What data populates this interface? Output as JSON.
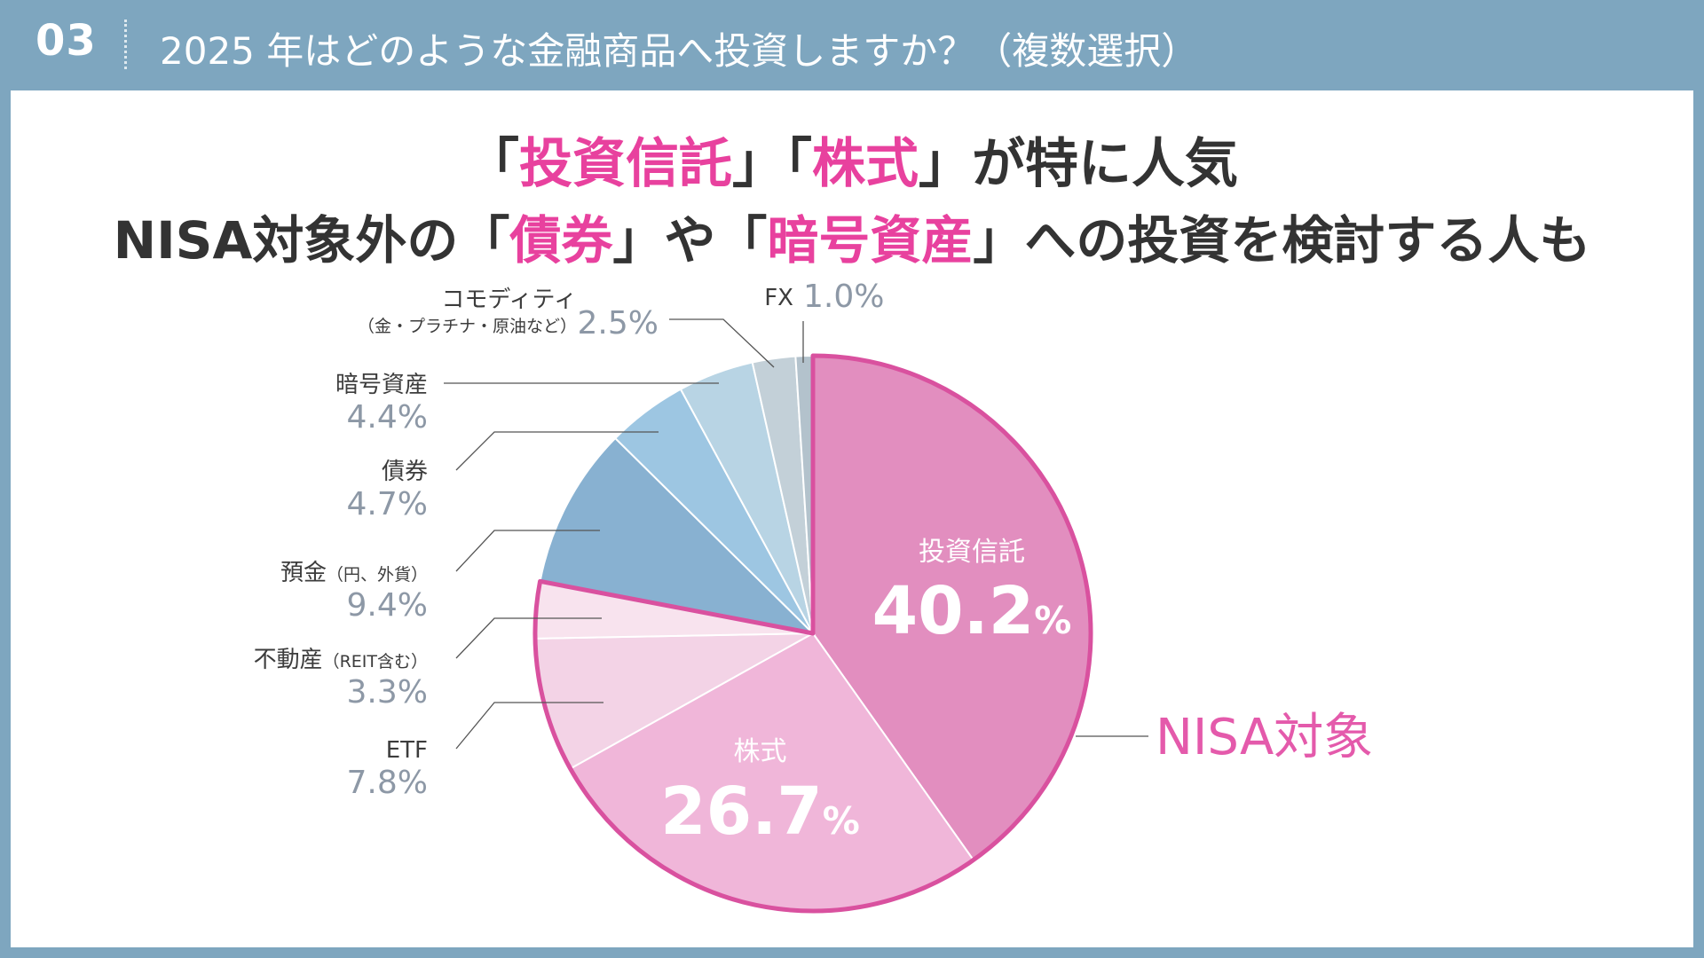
{
  "header": {
    "number": "03",
    "title": "2025 年はどのような金融商品へ投資しますか？（複数選択）"
  },
  "headline": {
    "line1": [
      {
        "text": "「",
        "hl": false
      },
      {
        "text": "投資信託",
        "hl": true
      },
      {
        "text": "」「",
        "hl": false
      },
      {
        "text": "株式",
        "hl": true
      },
      {
        "text": "」が特に人気",
        "hl": false
      }
    ],
    "line2": [
      {
        "text": "NISA対象外の「",
        "hl": false
      },
      {
        "text": "債券",
        "hl": true
      },
      {
        "text": "」や「",
        "hl": false
      },
      {
        "text": "暗号資産",
        "hl": true
      },
      {
        "text": "」への投資を検討する人も",
        "hl": false
      }
    ]
  },
  "colors": {
    "header_bg": "#7ea6bf",
    "highlight": "#e8419e",
    "nisa_outline": "#d9519f",
    "nisa_label": "#e45aab"
  },
  "chart_data": {
    "type": "pie",
    "unit": "%",
    "slices": [
      {
        "name": "投資信託",
        "value": 40.2,
        "label": "40.2",
        "color": "#e28ebf",
        "nisa": true
      },
      {
        "name": "株式",
        "value": 26.7,
        "label": "26.7",
        "color": "#f0b6d9",
        "nisa": true
      },
      {
        "name": "ETF",
        "value": 7.8,
        "label": "7.8",
        "color": "#f3d3e6",
        "nisa": true
      },
      {
        "name": "不動産",
        "sub": "（REIT含む）",
        "value": 3.3,
        "label": "3.3",
        "color": "#f8e3ee",
        "nisa": true
      },
      {
        "name": "預金",
        "sub": "（円、外貨）",
        "value": 9.4,
        "label": "9.4",
        "color": "#88b1d1",
        "nisa": false
      },
      {
        "name": "債券",
        "value": 4.7,
        "label": "4.7",
        "color": "#9dc6e2",
        "nisa": false
      },
      {
        "name": "暗号資産",
        "value": 4.4,
        "label": "4.4",
        "color": "#b8d4e4",
        "nisa": false
      },
      {
        "name": "コモディティ",
        "sub": "（金・プラチナ・原油など）",
        "value": 2.5,
        "label": "2.5",
        "color": "#c3d0d8",
        "nisa": false
      },
      {
        "name": "FX",
        "value": 1.0,
        "label": "1.0",
        "color": "#b3c2cc",
        "nisa": false
      }
    ],
    "group_label": "NISA対象"
  }
}
